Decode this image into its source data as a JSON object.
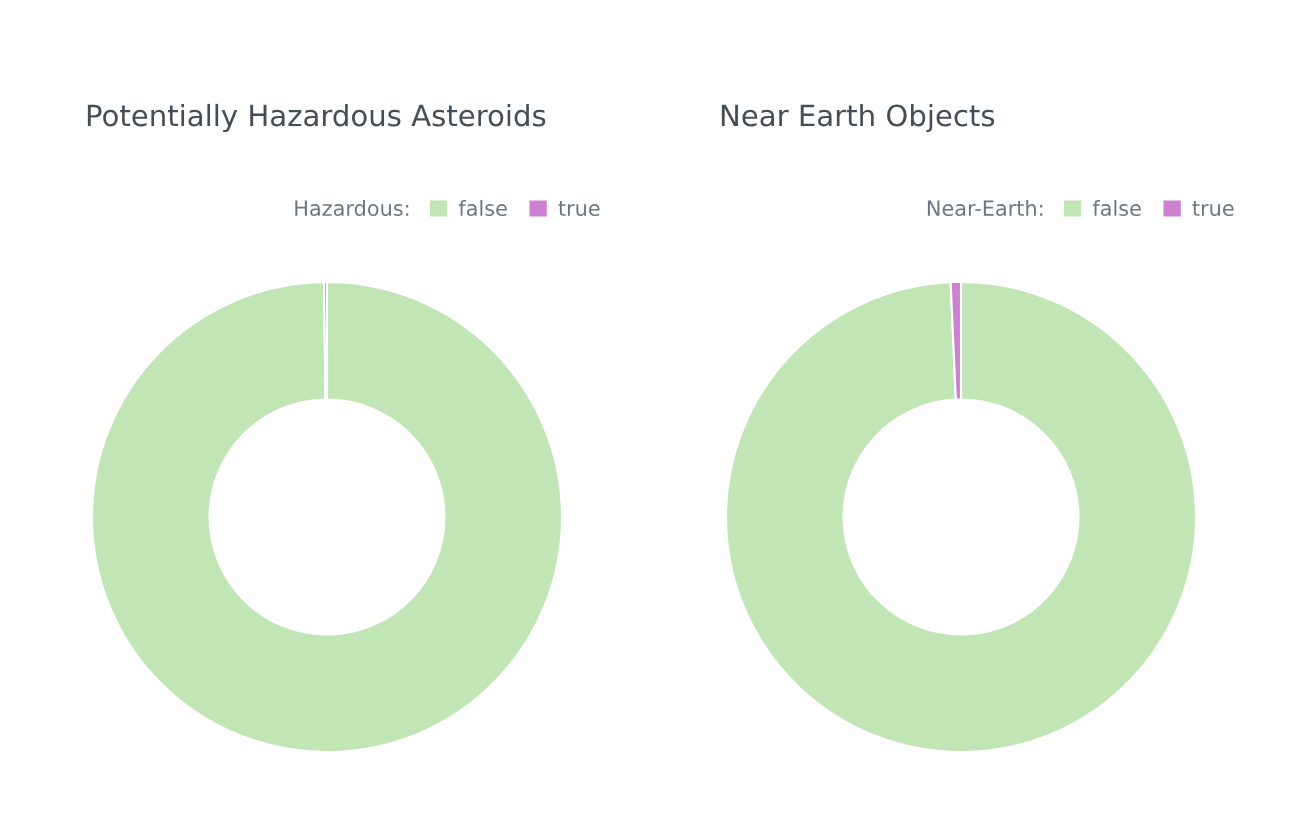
{
  "chart_data": [
    {
      "type": "donut",
      "title": "Potentially Hazardous Asteroids",
      "legend_title": "Hazardous:",
      "categories": [
        "false",
        "true"
      ],
      "values": [
        99.8,
        0.2
      ],
      "colors": [
        "#c2e5b5",
        "#cc82d0"
      ],
      "legend": "top right"
    },
    {
      "type": "donut",
      "title": "Near Earth Objects",
      "legend_title": "Near-Earth:",
      "categories": [
        "false",
        "true"
      ],
      "values": [
        99.3,
        0.7
      ],
      "colors": [
        "#c2e5b5",
        "#cc82d0"
      ],
      "legend": "top right"
    }
  ]
}
